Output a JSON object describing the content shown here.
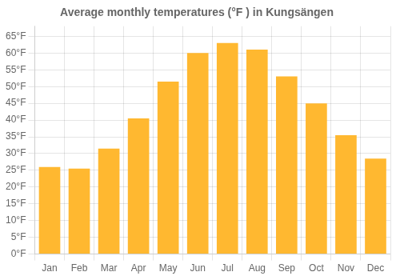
{
  "chart_data": {
    "type": "bar",
    "title": "Average monthly temperatures (°F ) in Kungsängen",
    "categories": [
      "Jan",
      "Feb",
      "Mar",
      "Apr",
      "May",
      "Jun",
      "Jul",
      "Aug",
      "Sep",
      "Oct",
      "Nov",
      "Dec"
    ],
    "values": [
      26,
      25.5,
      31.5,
      40.5,
      51.5,
      60,
      63,
      61,
      53,
      45,
      35.5,
      28.5
    ],
    "color": "#FFB830",
    "ylim": [
      0,
      68
    ],
    "yticks": [
      {
        "value": 0,
        "label": "0°F"
      },
      {
        "value": 5,
        "label": "5°F"
      },
      {
        "value": 10,
        "label": "10°F"
      },
      {
        "value": 15,
        "label": "15°F"
      },
      {
        "value": 20,
        "label": "20°F"
      },
      {
        "value": 25,
        "label": "25°F"
      },
      {
        "value": 30,
        "label": "30°F"
      },
      {
        "value": 35,
        "label": "35°F"
      },
      {
        "value": 40,
        "label": "40°F"
      },
      {
        "value": 45,
        "label": "45°F"
      },
      {
        "value": 50,
        "label": "50°F"
      },
      {
        "value": 55,
        "label": "55°F"
      },
      {
        "value": 60,
        "label": "60°F"
      },
      {
        "value": 65,
        "label": "65°F"
      }
    ],
    "grid": true
  }
}
